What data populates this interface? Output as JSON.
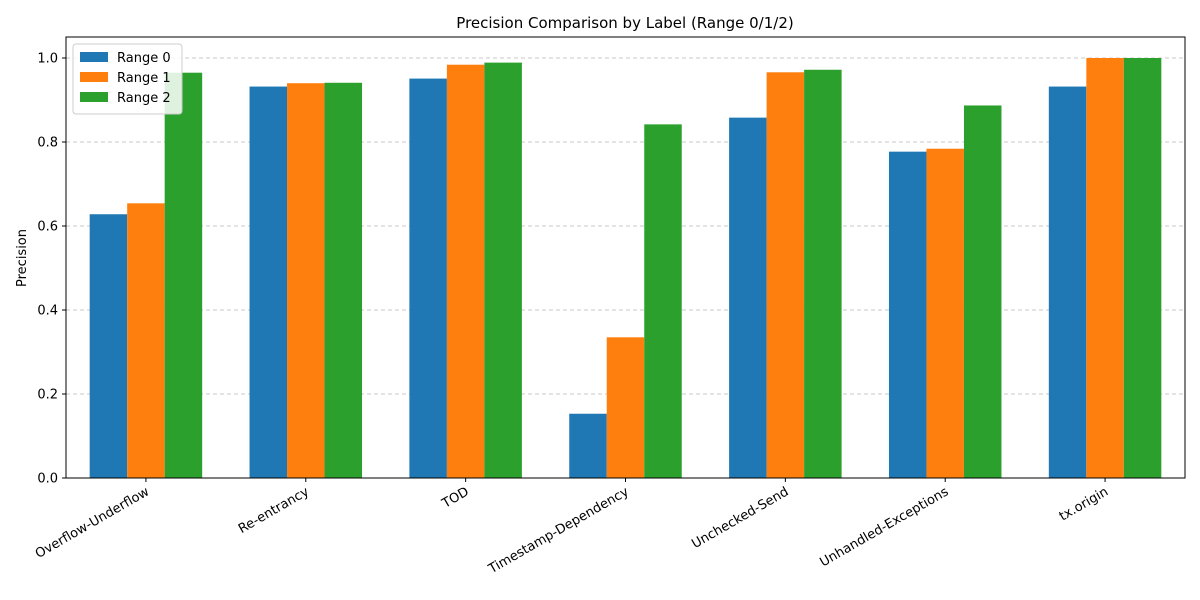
{
  "chart_data": {
    "type": "bar",
    "title": "Precision Comparison by Label (Range 0/1/2)",
    "xlabel": "",
    "ylabel": "Precision",
    "ylim": [
      0,
      1.05
    ],
    "yticks": [
      "0.0",
      "0.2",
      "0.4",
      "0.6",
      "0.8",
      "1.0"
    ],
    "grid": "y-dashed",
    "legend_position": "top-left",
    "categories": [
      "Overflow-Underflow",
      "Re-entrancy",
      "TOD",
      "Timestamp-Dependency",
      "Unchecked-Send",
      "Unhandled-Exceptions",
      "tx.origin"
    ],
    "series": [
      {
        "name": "Range 0",
        "color": "#1f77b4",
        "values": [
          0.628,
          0.932,
          0.951,
          0.153,
          0.858,
          0.777,
          0.932
        ]
      },
      {
        "name": "Range 1",
        "color": "#ff7f0e",
        "values": [
          0.654,
          0.94,
          0.984,
          0.335,
          0.966,
          0.784,
          1.0
        ]
      },
      {
        "name": "Range 2",
        "color": "#2ca02c",
        "values": [
          0.965,
          0.941,
          0.989,
          0.842,
          0.972,
          0.887,
          1.0
        ]
      }
    ]
  }
}
